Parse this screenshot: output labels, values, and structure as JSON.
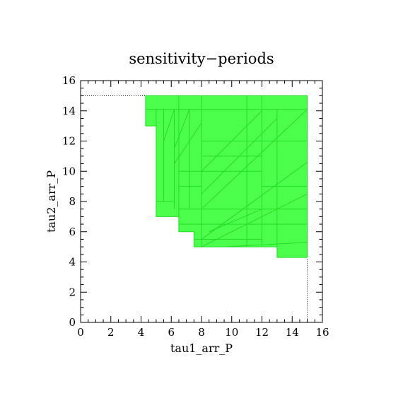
{
  "chart_data": {
    "type": "area",
    "title": "sensitivity−periods",
    "xlabel": "tau1_arr_P",
    "ylabel": "tau2_arr_P",
    "xlim": [
      0,
      16
    ],
    "ylim": [
      0,
      16
    ],
    "xticks": [
      0,
      2,
      4,
      6,
      8,
      10,
      12,
      14,
      16
    ],
    "yticks": [
      0,
      2,
      4,
      6,
      8,
      10,
      12,
      14,
      16
    ],
    "fill_color": "#4dff4d",
    "edge_color": "#22dd22",
    "boundary_line": {
      "style": "dotted",
      "x": 15,
      "y": 15
    },
    "region_outline": [
      [
        4.3,
        15
      ],
      [
        15,
        15
      ],
      [
        15,
        4.3
      ],
      [
        13,
        4.3
      ],
      [
        13,
        5
      ],
      [
        7.5,
        5
      ],
      [
        7.5,
        6
      ],
      [
        6.5,
        6
      ],
      [
        6.5,
        7
      ],
      [
        5,
        7
      ],
      [
        5,
        7.5
      ],
      [
        5,
        13
      ],
      [
        4.3,
        13
      ]
    ],
    "internal_lines": [
      [
        [
          4.3,
          14.1
        ],
        [
          15,
          14.1
        ]
      ],
      [
        [
          5,
          14.1
        ],
        [
          5,
          7.5
        ]
      ],
      [
        [
          5.5,
          14.1
        ],
        [
          5.5,
          8
        ]
      ],
      [
        [
          6.2,
          14.1
        ],
        [
          6.2,
          7.5
        ]
      ],
      [
        [
          6.5,
          15
        ],
        [
          6.5,
          6
        ]
      ],
      [
        [
          7.2,
          14.1
        ],
        [
          7.2,
          7.5
        ]
      ],
      [
        [
          8,
          15
        ],
        [
          8,
          5
        ]
      ],
      [
        [
          11,
          15
        ],
        [
          11,
          5
        ]
      ],
      [
        [
          12,
          15
        ],
        [
          12,
          5
        ]
      ],
      [
        [
          13,
          14.1
        ],
        [
          13,
          4.3
        ]
      ],
      [
        [
          6.5,
          10
        ],
        [
          8,
          10
        ]
      ],
      [
        [
          6.5,
          9
        ],
        [
          8,
          9
        ]
      ],
      [
        [
          5,
          8
        ],
        [
          6.2,
          8
        ]
      ],
      [
        [
          6.5,
          7.5
        ],
        [
          15,
          7.5
        ]
      ],
      [
        [
          6.5,
          6.5
        ],
        [
          15,
          6.5
        ]
      ],
      [
        [
          7.5,
          5.5
        ],
        [
          12,
          5.5
        ]
      ],
      [
        [
          12,
          9
        ],
        [
          15,
          9
        ]
      ],
      [
        [
          8,
          12
        ],
        [
          15,
          12
        ]
      ],
      [
        [
          8,
          11
        ],
        [
          12,
          11
        ]
      ],
      [
        [
          8,
          10
        ],
        [
          12,
          10
        ]
      ],
      [
        [
          8,
          10
        ],
        [
          12,
          14
        ]
      ],
      [
        [
          8,
          8.5
        ],
        [
          13,
          13.5
        ]
      ],
      [
        [
          8,
          7.5
        ],
        [
          15,
          14.1
        ]
      ],
      [
        [
          8,
          5.5
        ],
        [
          15,
          10.6
        ]
      ],
      [
        [
          8,
          5
        ],
        [
          15,
          8.5
        ]
      ],
      [
        [
          9.5,
          5
        ],
        [
          15,
          5.3
        ]
      ],
      [
        [
          8.5,
          6
        ],
        [
          12,
          7.5
        ]
      ],
      [
        [
          6.2,
          10.5
        ],
        [
          8,
          13.2
        ]
      ],
      [
        [
          6.2,
          11.5
        ],
        [
          7.2,
          14.1
        ]
      ],
      [
        [
          5.5,
          12
        ],
        [
          6.2,
          14.1
        ]
      ]
    ]
  }
}
